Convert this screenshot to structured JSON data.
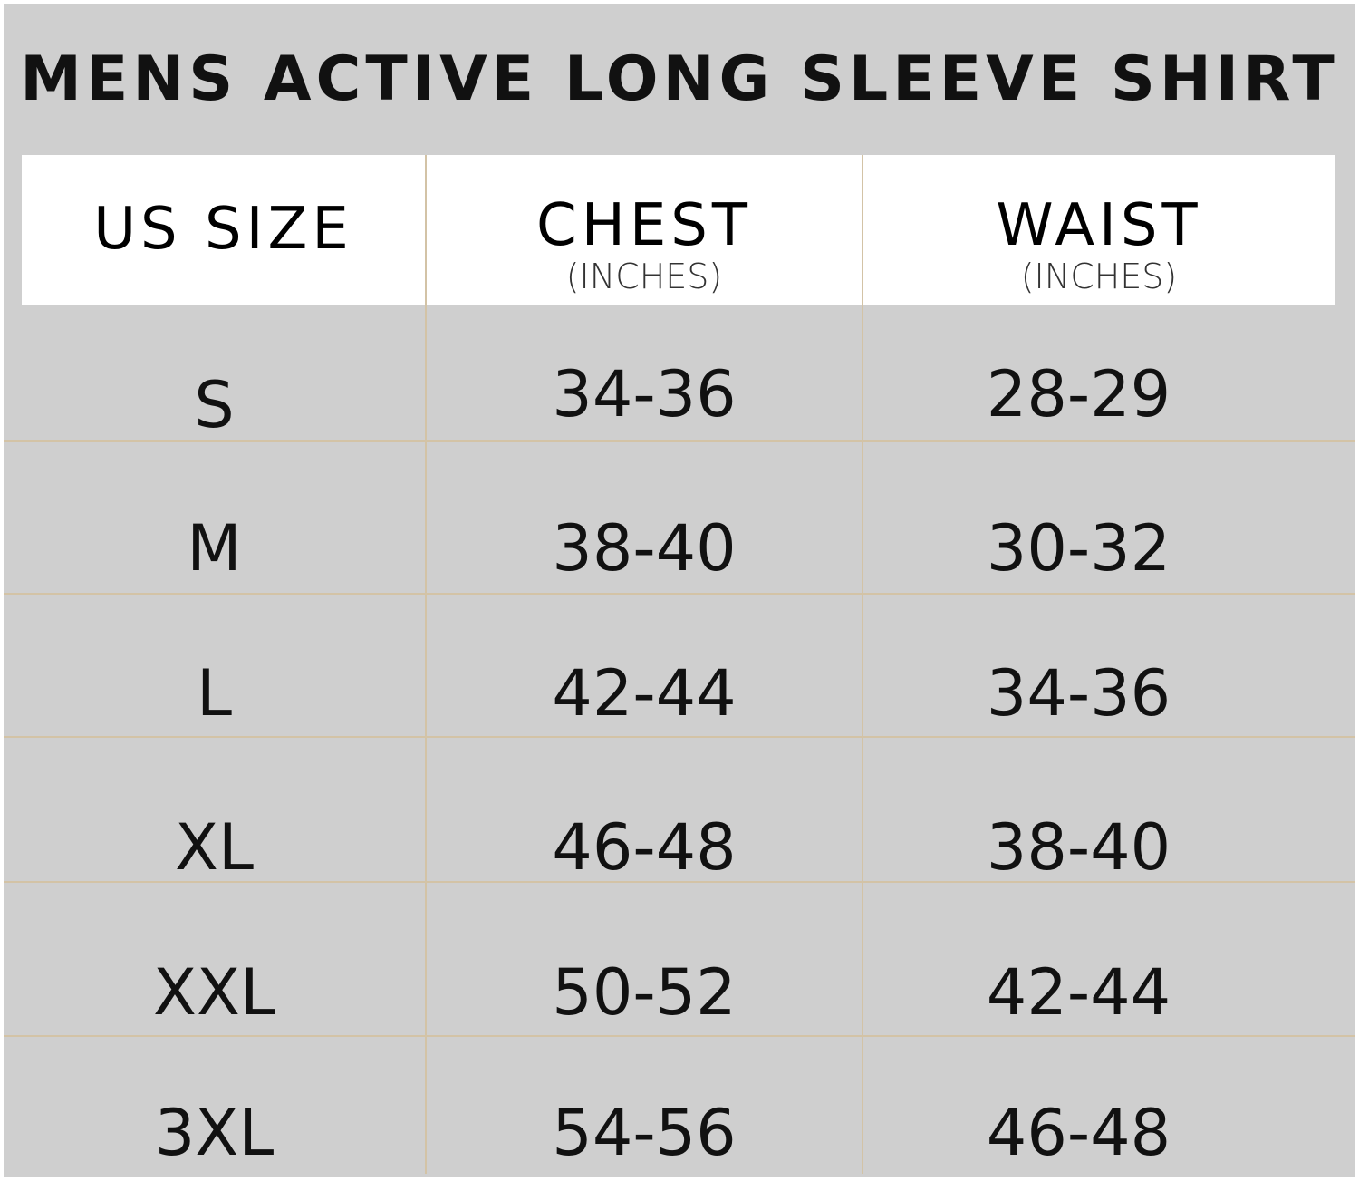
{
  "title": "MENS ACTIVE LONG SLEEVE SHIRT",
  "headers": [
    {
      "label": "US SIZE",
      "unit": ""
    },
    {
      "label": "CHEST",
      "unit": "(INCHES)"
    },
    {
      "label": "WAIST",
      "unit": "(INCHES)"
    }
  ],
  "rows": [
    {
      "size": "S",
      "chest": "34-36",
      "waist": "28-29"
    },
    {
      "size": "M",
      "chest": "38-40",
      "waist": "30-32"
    },
    {
      "size": "L",
      "chest": "42-44",
      "waist": "34-36"
    },
    {
      "size": "XL",
      "chest": "46-48",
      "waist": "38-40"
    },
    {
      "size": "XXL",
      "chest": "50-52",
      "waist": "42-44"
    },
    {
      "size": "3XL",
      "chest": "54-56",
      "waist": "46-48"
    }
  ],
  "colors": {
    "background": "#cfcfcf",
    "header": "#ffffff",
    "divider": "#d3c3a6",
    "text": "#111111"
  }
}
